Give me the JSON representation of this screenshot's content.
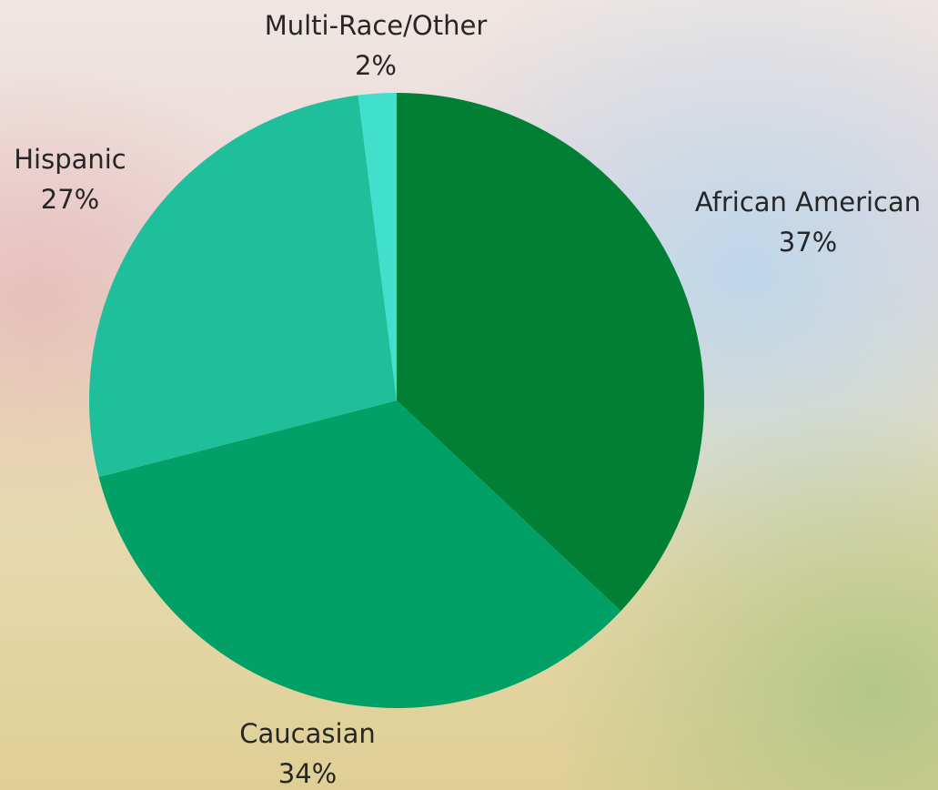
{
  "chart_data": {
    "type": "pie",
    "categories": [
      "African American",
      "Caucasian",
      "Hispanic",
      "Multi-Race/Other"
    ],
    "values": [
      37,
      34,
      27,
      2
    ],
    "value_labels": [
      "37%",
      "34%",
      "27%",
      "2%"
    ],
    "colors": [
      "#007f35",
      "#00a066",
      "#1fbf9b",
      "#40e0cc"
    ]
  }
}
